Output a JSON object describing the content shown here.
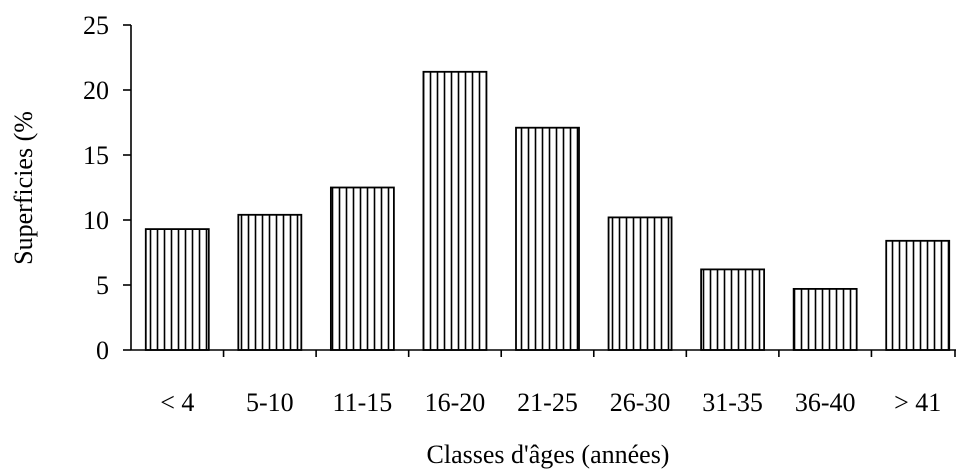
{
  "chart_data": {
    "type": "bar",
    "categories": [
      "< 4",
      "5-10",
      "11-15",
      "16-20",
      "21-25",
      "26-30",
      "31-35",
      "36-40",
      "> 41"
    ],
    "values": [
      9.3,
      10.4,
      12.5,
      21.4,
      17.1,
      10.2,
      6.2,
      4.7,
      8.4
    ],
    "xlabel": "Classes d'âges (années)",
    "ylabel": "Superficies (%",
    "ylim": [
      0,
      25
    ],
    "yticks": [
      0,
      5,
      10,
      15,
      20,
      25
    ],
    "grid": false,
    "legend": "none",
    "bar_fill": "vertical-hatch",
    "colors": {
      "bar_stroke": "#000000",
      "bar_background": "#ffffff",
      "axis": "#000000"
    }
  }
}
